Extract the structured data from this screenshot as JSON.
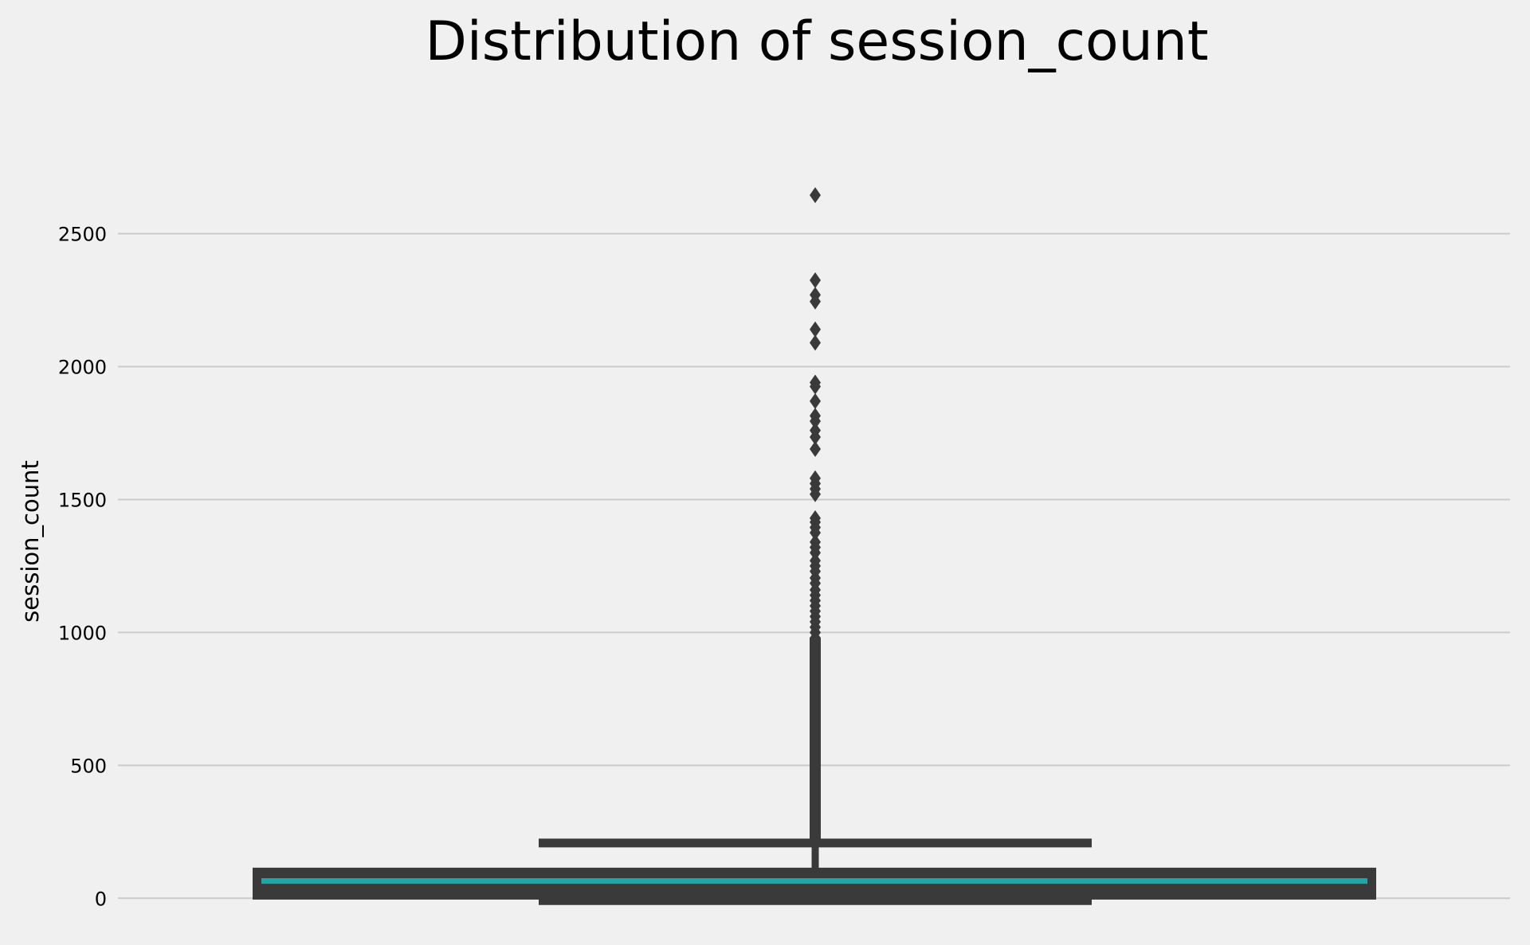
{
  "chart_data": {
    "type": "box",
    "title": "Distribution of session_count",
    "xlabel": "",
    "ylabel": "session_count",
    "ylim": [
      -80,
      2900
    ],
    "yticks": [
      0,
      500,
      1000,
      1500,
      2000,
      2500
    ],
    "grid": "horizontal",
    "box": {
      "q1": 10,
      "median": 65,
      "q3": 100,
      "whisker_low": 0,
      "whisker_high": 208
    },
    "outliers": [
      2645,
      2325,
      2270,
      2245,
      2140,
      2090,
      1940,
      1925,
      1870,
      1815,
      1795,
      1760,
      1735,
      1690,
      1580,
      1560,
      1540,
      1520,
      1430,
      1415,
      1395,
      1375,
      1340,
      1320,
      1300,
      1270,
      1250,
      1230,
      1205,
      1185,
      1160,
      1140,
      1120,
      1100,
      1080,
      1060,
      1040,
      1020,
      1000
    ],
    "outlier_range": [
      220,
      980
    ],
    "colors": {
      "box": "#3a3a3a",
      "median": "#1fa8a8",
      "grid": "#cbcbcb",
      "background": "#f0f0f0"
    }
  }
}
